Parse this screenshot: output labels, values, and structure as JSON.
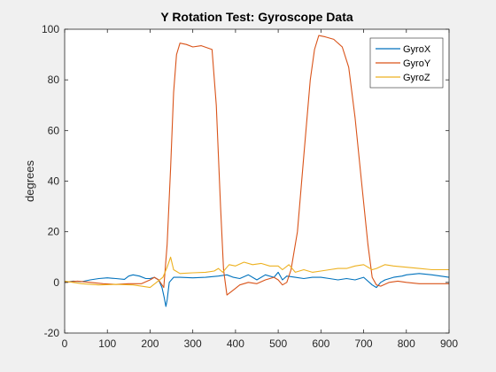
{
  "chart_data": {
    "type": "line",
    "title": "Y Rotation Test: Gyroscope Data",
    "xlabel": "",
    "ylabel": "degrees",
    "xlim": [
      0,
      900
    ],
    "ylim": [
      -20,
      100
    ],
    "xticks": [
      0,
      100,
      200,
      300,
      400,
      500,
      600,
      700,
      800,
      900
    ],
    "yticks": [
      -20,
      0,
      20,
      40,
      60,
      80,
      100
    ],
    "grid": false,
    "legend": "top-right",
    "series": [
      {
        "name": "GyroX",
        "color": "#0072BD",
        "points": [
          [
            0,
            0
          ],
          [
            20,
            0.5
          ],
          [
            40,
            0.3
          ],
          [
            60,
            1
          ],
          [
            80,
            1.5
          ],
          [
            100,
            1.8
          ],
          [
            120,
            1.5
          ],
          [
            140,
            1.2
          ],
          [
            150,
            2.5
          ],
          [
            160,
            3
          ],
          [
            175,
            2.5
          ],
          [
            190,
            1.5
          ],
          [
            200,
            1.5
          ],
          [
            210,
            2
          ],
          [
            220,
            1
          ],
          [
            228,
            -2
          ],
          [
            233,
            -6
          ],
          [
            237,
            -9.5
          ],
          [
            240,
            -7
          ],
          [
            245,
            0
          ],
          [
            255,
            2
          ],
          [
            270,
            2
          ],
          [
            300,
            1.8
          ],
          [
            330,
            2
          ],
          [
            360,
            2.5
          ],
          [
            380,
            3
          ],
          [
            395,
            2
          ],
          [
            410,
            1.5
          ],
          [
            430,
            3
          ],
          [
            450,
            1
          ],
          [
            470,
            3
          ],
          [
            490,
            2
          ],
          [
            500,
            4
          ],
          [
            510,
            1
          ],
          [
            520,
            2.5
          ],
          [
            540,
            2
          ],
          [
            560,
            1.5
          ],
          [
            580,
            2
          ],
          [
            600,
            2
          ],
          [
            620,
            1.5
          ],
          [
            640,
            1
          ],
          [
            660,
            1.5
          ],
          [
            680,
            1
          ],
          [
            700,
            2
          ],
          [
            720,
            -1
          ],
          [
            730,
            -2
          ],
          [
            740,
            0
          ],
          [
            750,
            1
          ],
          [
            770,
            2
          ],
          [
            790,
            2.5
          ],
          [
            800,
            3
          ],
          [
            830,
            3.5
          ],
          [
            860,
            3
          ],
          [
            880,
            2.5
          ],
          [
            900,
            2
          ]
        ]
      },
      {
        "name": "GyroY",
        "color": "#D95319",
        "points": [
          [
            0,
            0
          ],
          [
            30,
            0.5
          ],
          [
            60,
            0
          ],
          [
            90,
            -0.5
          ],
          [
            120,
            -0.8
          ],
          [
            150,
            -0.5
          ],
          [
            180,
            -0.5
          ],
          [
            200,
            1
          ],
          [
            210,
            2
          ],
          [
            220,
            1
          ],
          [
            232,
            -2
          ],
          [
            240,
            15
          ],
          [
            248,
            45
          ],
          [
            255,
            75
          ],
          [
            262,
            90
          ],
          [
            270,
            94.5
          ],
          [
            285,
            94
          ],
          [
            300,
            93
          ],
          [
            320,
            93.5
          ],
          [
            345,
            92
          ],
          [
            355,
            70
          ],
          [
            365,
            30
          ],
          [
            372,
            5
          ],
          [
            380,
            -5
          ],
          [
            395,
            -3
          ],
          [
            410,
            -1
          ],
          [
            430,
            0
          ],
          [
            450,
            -0.5
          ],
          [
            470,
            1
          ],
          [
            490,
            2
          ],
          [
            500,
            1
          ],
          [
            510,
            -1
          ],
          [
            520,
            0
          ],
          [
            530,
            5
          ],
          [
            545,
            20
          ],
          [
            560,
            50
          ],
          [
            575,
            80
          ],
          [
            585,
            92
          ],
          [
            595,
            97.5
          ],
          [
            610,
            97
          ],
          [
            630,
            96
          ],
          [
            650,
            93
          ],
          [
            665,
            85
          ],
          [
            680,
            65
          ],
          [
            695,
            40
          ],
          [
            710,
            15
          ],
          [
            720,
            2
          ],
          [
            730,
            -1
          ],
          [
            740,
            -1.5
          ],
          [
            760,
            0
          ],
          [
            780,
            0.5
          ],
          [
            800,
            0
          ],
          [
            830,
            -0.5
          ],
          [
            860,
            -0.5
          ],
          [
            900,
            -0.5
          ]
        ]
      },
      {
        "name": "GyroZ",
        "color": "#EDB120",
        "points": [
          [
            0,
            0.5
          ],
          [
            40,
            -0.5
          ],
          [
            80,
            -1
          ],
          [
            120,
            -0.8
          ],
          [
            160,
            -1
          ],
          [
            180,
            -1.5
          ],
          [
            200,
            -2
          ],
          [
            215,
            0
          ],
          [
            230,
            2
          ],
          [
            240,
            6
          ],
          [
            248,
            10
          ],
          [
            255,
            5
          ],
          [
            270,
            3.5
          ],
          [
            300,
            3.8
          ],
          [
            330,
            4
          ],
          [
            350,
            4.5
          ],
          [
            360,
            5.5
          ],
          [
            370,
            4
          ],
          [
            385,
            7
          ],
          [
            400,
            6.5
          ],
          [
            420,
            8
          ],
          [
            440,
            7
          ],
          [
            460,
            7.5
          ],
          [
            480,
            6.5
          ],
          [
            500,
            6.5
          ],
          [
            510,
            5
          ],
          [
            525,
            7
          ],
          [
            540,
            4
          ],
          [
            560,
            5
          ],
          [
            580,
            4
          ],
          [
            600,
            4.5
          ],
          [
            620,
            5
          ],
          [
            640,
            5.5
          ],
          [
            660,
            5.5
          ],
          [
            680,
            6.5
          ],
          [
            700,
            7
          ],
          [
            720,
            5
          ],
          [
            730,
            5.5
          ],
          [
            750,
            7
          ],
          [
            770,
            6.5
          ],
          [
            800,
            6
          ],
          [
            830,
            5.5
          ],
          [
            860,
            5
          ],
          [
            900,
            5
          ]
        ]
      }
    ]
  }
}
